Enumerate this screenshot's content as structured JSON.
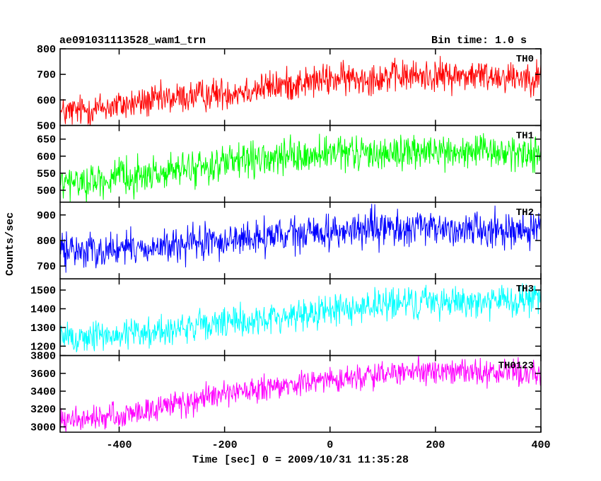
{
  "header": {
    "title": "ae091031113528_wam1_trn",
    "bin_time": "Bin time: 1.0 s"
  },
  "xlabel": "Time [sec] 0 = 2009/10/31 11:35:28",
  "ylabel": "Counts/sec",
  "chart_data": {
    "type": "line",
    "x_range": [
      -512,
      400
    ],
    "x_step": 1,
    "x_ticks": [
      -400,
      -200,
      0,
      200,
      400
    ],
    "xlabel": "Time [sec] 0 = 2009/10/31 11:35:28",
    "ylabel": "Counts/sec",
    "series": [
      {
        "name": "TH0",
        "color": "#ff0000",
        "ylim": [
          500,
          800
        ],
        "y_ticks": [
          500,
          600,
          700,
          800
        ],
        "trend_x": [
          -512,
          -400,
          -300,
          -200,
          -100,
          0,
          100,
          200,
          300,
          400
        ],
        "trend_y": [
          548,
          578,
          605,
          628,
          655,
          680,
          690,
          695,
          695,
          690
        ],
        "noise": 35
      },
      {
        "name": "TH1",
        "color": "#00ff00",
        "ylim": [
          465,
          690
        ],
        "y_ticks": [
          500,
          550,
          600,
          650
        ],
        "trend_x": [
          -512,
          -400,
          -300,
          -200,
          -100,
          0,
          100,
          200,
          300,
          400
        ],
        "trend_y": [
          518,
          535,
          555,
          578,
          592,
          605,
          610,
          612,
          610,
          608
        ],
        "noise": 28
      },
      {
        "name": "TH2",
        "color": "#0000ff",
        "ylim": [
          650,
          950
        ],
        "y_ticks": [
          700,
          800,
          900
        ],
        "trend_x": [
          -512,
          -400,
          -300,
          -200,
          -100,
          0,
          100,
          200,
          300,
          400
        ],
        "trend_y": [
          760,
          765,
          775,
          800,
          815,
          835,
          845,
          848,
          845,
          840
        ],
        "noise": 38
      },
      {
        "name": "TH3",
        "color": "#00ffff",
        "ylim": [
          1150,
          1560
        ],
        "y_ticks": [
          1200,
          1300,
          1400,
          1500
        ],
        "trend_x": [
          -512,
          -400,
          -300,
          -200,
          -100,
          0,
          100,
          200,
          300,
          400
        ],
        "trend_y": [
          1240,
          1262,
          1290,
          1320,
          1352,
          1395,
          1420,
          1440,
          1440,
          1440
        ],
        "noise": 48
      },
      {
        "name": "TH0123",
        "color": "#ff00ff",
        "ylim": [
          2940,
          3800
        ],
        "y_ticks": [
          3000,
          3200,
          3400,
          3600,
          3800
        ],
        "trend_x": [
          -512,
          -400,
          -300,
          -200,
          -100,
          0,
          100,
          200,
          300,
          400
        ],
        "trend_y": [
          3060,
          3120,
          3250,
          3360,
          3440,
          3530,
          3590,
          3620,
          3610,
          3610
        ],
        "noise": 80
      }
    ]
  }
}
